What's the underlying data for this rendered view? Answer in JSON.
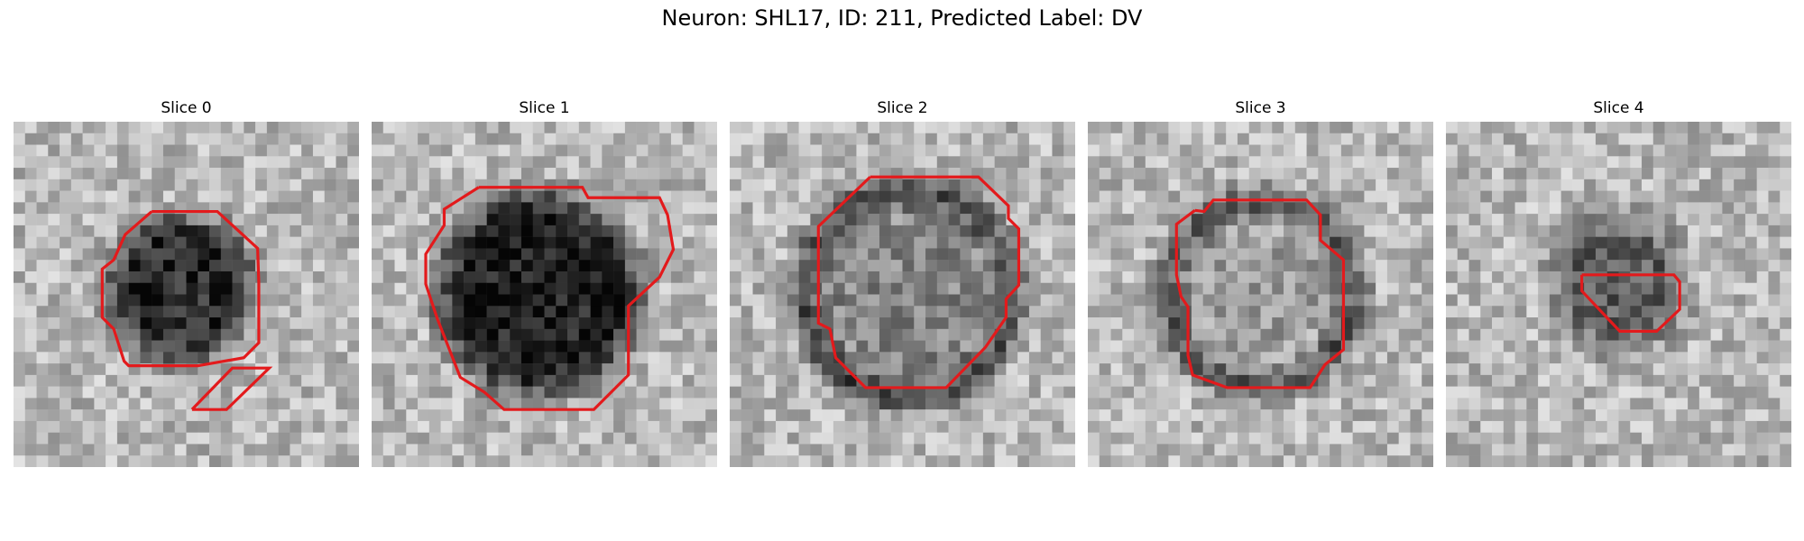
{
  "figure": {
    "title": "Neuron: SHL17, ID: 211, Predicted Label: DV"
  },
  "panels": [
    {
      "title": "Slice 0"
    },
    {
      "title": "Slice 1"
    },
    {
      "title": "Slice 2"
    },
    {
      "title": "Slice 3"
    },
    {
      "title": "Slice 4"
    }
  ],
  "colors": {
    "contour": "#e31a1c"
  }
}
